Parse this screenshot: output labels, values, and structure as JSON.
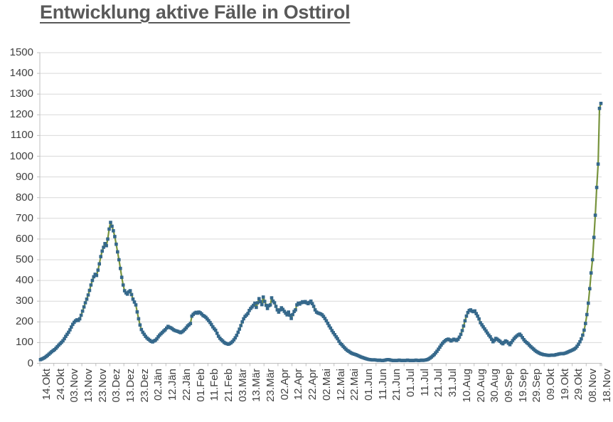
{
  "title": "Entwicklung aktive Fälle in Osttirol",
  "background_color": "#ffffff",
  "chart_data": {
    "type": "line",
    "title": "Entwicklung aktive Fälle in Osttirol",
    "xlabel": "",
    "ylabel": "",
    "ylim": [
      0,
      1500
    ],
    "y_ticks": [
      0,
      100,
      200,
      300,
      400,
      500,
      600,
      700,
      800,
      900,
      1000,
      1100,
      1200,
      1300,
      1400,
      1500
    ],
    "grid": "horizontal",
    "legend_position": "none",
    "line_color": "#77933c",
    "marker_color": "#35688b",
    "marker_shape": "square",
    "gridline_color": "#d9d9d9",
    "axis_color": "#bfbfbf",
    "tick_label_color": "#404040",
    "title_color": "#595959",
    "points_per_tick": 10,
    "x_tick_labels": [
      "14.Okt",
      "24.Okt",
      "03.Nov",
      "13.Nov",
      "23.Nov",
      "03.Dez",
      "13.Dez",
      "23.Dez",
      "02.Jän",
      "12.Jän",
      "22.Jän",
      "01.Feb",
      "11.Feb",
      "21.Feb",
      "03.Mär",
      "13.Mär",
      "23.Mär",
      "02.Apr",
      "12.Apr",
      "22.Apr",
      "02.Mai",
      "12.Mai",
      "22.Mai",
      "01.Jun",
      "11.Jun",
      "21.Jun",
      "01.Jul",
      "11.Jul",
      "21.Jul",
      "31.Jul",
      "10.Aug",
      "20.Aug",
      "30.Aug",
      "09.Sep",
      "19.Sep",
      "29.Sep",
      "09.Okt",
      "19.Okt",
      "29.Okt",
      "08.Nov",
      "18.Nov"
    ],
    "values": [
      18,
      21,
      24,
      28,
      33,
      38,
      44,
      50,
      56,
      61,
      66,
      73,
      80,
      88,
      95,
      101,
      109,
      119,
      130,
      140,
      150,
      162,
      175,
      188,
      198,
      205,
      210,
      207,
      215,
      232,
      252,
      272,
      292,
      310,
      330,
      352,
      378,
      400,
      418,
      430,
      424,
      450,
      480,
      515,
      542,
      560,
      578,
      568,
      600,
      648,
      680,
      662,
      640,
      612,
      575,
      538,
      500,
      458,
      415,
      378,
      350,
      340,
      334,
      345,
      350,
      332,
      310,
      296,
      282,
      248,
      215,
      185,
      163,
      150,
      140,
      130,
      122,
      116,
      111,
      106,
      103,
      108,
      111,
      118,
      128,
      136,
      143,
      149,
      156,
      162,
      170,
      178,
      174,
      171,
      167,
      162,
      158,
      156,
      154,
      151,
      148,
      152,
      157,
      164,
      171,
      180,
      186,
      192,
      228,
      236,
      242,
      246,
      242,
      247,
      244,
      238,
      231,
      227,
      222,
      214,
      206,
      197,
      187,
      176,
      167,
      159,
      145,
      131,
      121,
      114,
      108,
      101,
      97,
      95,
      92,
      95,
      99,
      105,
      113,
      123,
      135,
      150,
      165,
      182,
      200,
      215,
      226,
      233,
      241,
      255,
      265,
      272,
      280,
      290,
      270,
      292,
      312,
      298,
      283,
      320,
      299,
      280,
      265,
      278,
      282,
      316,
      300,
      292,
      275,
      258,
      247,
      258,
      268,
      260,
      251,
      242,
      234,
      247,
      232,
      217,
      235,
      250,
      258,
      282,
      290,
      286,
      292,
      297,
      294,
      298,
      292,
      288,
      294,
      300,
      288,
      275,
      258,
      247,
      243,
      241,
      238,
      234,
      226,
      216,
      205,
      193,
      181,
      170,
      158,
      148,
      138,
      128,
      119,
      107,
      96,
      90,
      82,
      75,
      68,
      62,
      58,
      53,
      49,
      46,
      44,
      42,
      39,
      36,
      33,
      30,
      28,
      25,
      23,
      21,
      19,
      18,
      17,
      16,
      17,
      16,
      15,
      14,
      15,
      14,
      13,
      14,
      15,
      17,
      18,
      17,
      15,
      14,
      13,
      14,
      13,
      14,
      15,
      14,
      13,
      14,
      13,
      14,
      15,
      14,
      13,
      14,
      13,
      14,
      15,
      14,
      13,
      14,
      15,
      14,
      15,
      16,
      18,
      21,
      25,
      30,
      36,
      42,
      50,
      58,
      68,
      78,
      88,
      97,
      104,
      110,
      114,
      117,
      113,
      108,
      112,
      116,
      113,
      110,
      116,
      126,
      140,
      158,
      180,
      205,
      228,
      245,
      255,
      258,
      252,
      249,
      253,
      240,
      228,
      214,
      196,
      186,
      176,
      166,
      156,
      146,
      136,
      128,
      116,
      104,
      111,
      120,
      116,
      111,
      106,
      99,
      94,
      101,
      108,
      104,
      97,
      90,
      100,
      110,
      119,
      126,
      132,
      137,
      141,
      134,
      124,
      114,
      106,
      100,
      95,
      87,
      80,
      74,
      68,
      62,
      57,
      53,
      49,
      46,
      44,
      42,
      41,
      40,
      39,
      38,
      39,
      40,
      39,
      40,
      42,
      43,
      45,
      46,
      47,
      46,
      48,
      50,
      53,
      56,
      59,
      62,
      65,
      69,
      74,
      82,
      92,
      104,
      118,
      136,
      160,
      192,
      235,
      290,
      360,
      436,
      500,
      608,
      715,
      849,
      962,
      1231,
      1255
    ]
  }
}
